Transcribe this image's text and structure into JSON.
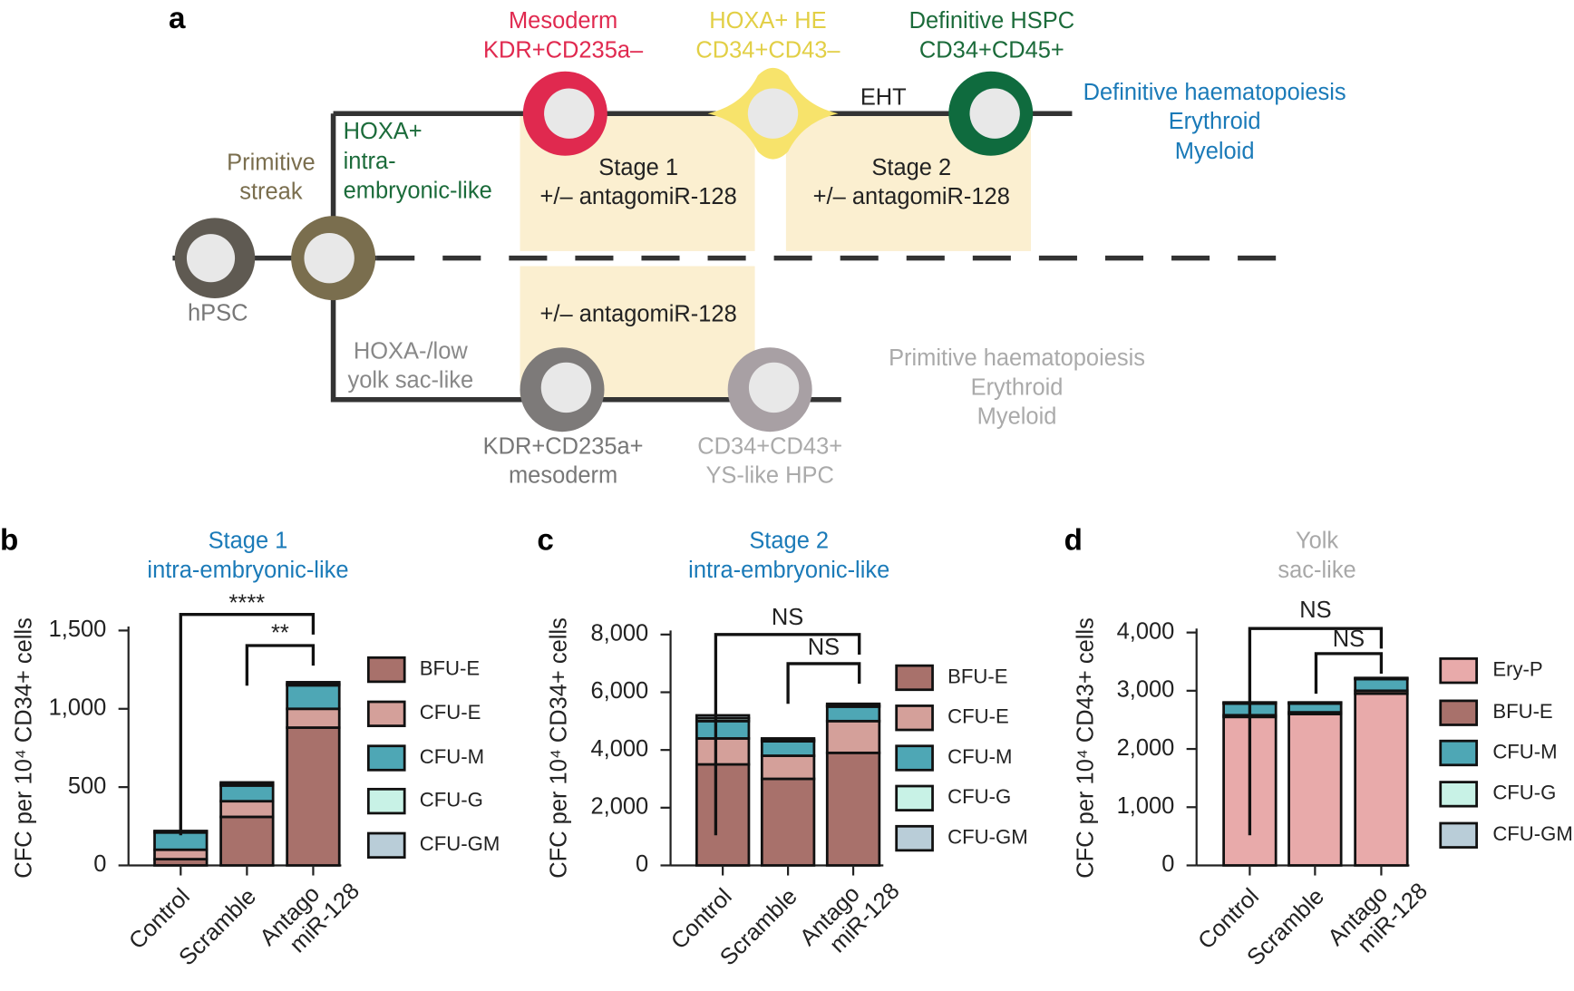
{
  "diagram": {
    "panel": "a",
    "mesoderm": [
      "Mesoderm",
      "KDR+CD235a–"
    ],
    "he": [
      "HOXA+ HE",
      "CD34+CD43–"
    ],
    "hspc": [
      "Definitive HSPC",
      "CD34+CD45+"
    ],
    "eht": "EHT",
    "definitive": [
      "Definitive haematopoiesis",
      "Erythroid",
      "Myeloid"
    ],
    "intra": [
      "HOXA+",
      "intra-",
      "embryonic-like"
    ],
    "streak": [
      "Primitive",
      "streak"
    ],
    "stage1": [
      "Stage 1",
      "+/– antagomiR-128"
    ],
    "stage2": [
      "Stage 2",
      "+/– antagomiR-128"
    ],
    "hpsc": "hPSC",
    "ys_treat": "+/– antagomiR-128",
    "yolk": [
      "HOXA-/low",
      "yolk sac-like"
    ],
    "primitive": [
      "Primitive haematopoiesis",
      "Erythroid",
      "Myeloid"
    ],
    "ys_meso": [
      "KDR+CD235a+",
      "mesoderm"
    ],
    "ys_hpc": [
      "CD34+CD43+",
      "YS-like HPC"
    ]
  },
  "chart_data": [
    {
      "type": "stacked-bar",
      "panel": "b",
      "title": [
        "Stage 1",
        "intra-embryonic-like"
      ],
      "title_color": "#1a7ab8",
      "ylabel": "CFC per 10⁴ CD34+ cells",
      "categories": [
        "Control",
        "Scramble",
        "Antago miR-128"
      ],
      "series": [
        {
          "name": "BFU-E",
          "color": "#a8716b",
          "values": [
            40,
            310,
            880
          ]
        },
        {
          "name": "CFU-E",
          "color": "#d4a09a",
          "values": [
            60,
            100,
            120
          ]
        },
        {
          "name": "CFU-M",
          "color": "#4ea7b5",
          "values": [
            110,
            100,
            150
          ]
        },
        {
          "name": "CFU-G",
          "color": "#c8f2e6",
          "values": [
            5,
            10,
            10
          ]
        },
        {
          "name": "CFU-GM",
          "color": "#b9cdd8",
          "values": [
            5,
            10,
            10
          ]
        }
      ],
      "ylim": [
        0,
        1500
      ],
      "yticks": [
        0,
        500,
        {
          "value": 1000,
          "label": "1,000"
        },
        {
          "value": 1500,
          "label": "1,500"
        }
      ],
      "annotations": [
        "****",
        "**"
      ]
    },
    {
      "type": "stacked-bar",
      "panel": "c",
      "title": [
        "Stage 2",
        "intra-embryonic-like"
      ],
      "title_color": "#1a7ab8",
      "ylabel": "CFC per 10⁴ CD34+ cells",
      "categories": [
        "Control",
        "Scramble",
        "Antago miR-128"
      ],
      "series": [
        {
          "name": "BFU-E",
          "color": "#a8716b",
          "values": [
            3500,
            3000,
            3900
          ]
        },
        {
          "name": "CFU-E",
          "color": "#d4a09a",
          "values": [
            900,
            800,
            1100
          ]
        },
        {
          "name": "CFU-M",
          "color": "#4ea7b5",
          "values": [
            600,
            500,
            500
          ]
        },
        {
          "name": "CFU-G",
          "color": "#c8f2e6",
          "values": [
            100,
            50,
            50
          ]
        },
        {
          "name": "CFU-GM",
          "color": "#b9cdd8",
          "values": [
            100,
            50,
            50
          ]
        }
      ],
      "ylim": [
        0,
        8000
      ],
      "yticks": [
        0,
        {
          "value": 2000,
          "label": "2,000"
        },
        {
          "value": 4000,
          "label": "4,000"
        },
        {
          "value": 6000,
          "label": "6,000"
        },
        {
          "value": 8000,
          "label": "8,000"
        }
      ],
      "annotations": [
        "NS",
        "NS"
      ]
    },
    {
      "type": "stacked-bar",
      "panel": "d",
      "title": [
        "Yolk",
        "sac-like"
      ],
      "title_color": "#a8a8a8",
      "ylabel": "CFC per 10⁴ CD43+ cells",
      "categories": [
        "Control",
        "Scramble",
        "Antago miR-128"
      ],
      "series": [
        {
          "name": "Ery-P",
          "color": "#e8aaaa",
          "values": [
            2550,
            2600,
            2950
          ]
        },
        {
          "name": "BFU-E",
          "color": "#a8716b",
          "values": [
            30,
            30,
            50
          ]
        },
        {
          "name": "CFU-M",
          "color": "#4ea7b5",
          "values": [
            200,
            150,
            200
          ]
        },
        {
          "name": "CFU-G",
          "color": "#c8f2e6",
          "values": [
            10,
            10,
            10
          ]
        },
        {
          "name": "CFU-GM",
          "color": "#b9cdd8",
          "values": [
            10,
            10,
            10
          ]
        }
      ],
      "ylim": [
        0,
        4000
      ],
      "yticks": [
        0,
        {
          "value": 1000,
          "label": "1,000"
        },
        {
          "value": 2000,
          "label": "2,000"
        },
        {
          "value": 3000,
          "label": "3,000"
        },
        {
          "value": 4000,
          "label": "4,000"
        }
      ],
      "annotations": [
        "NS",
        "NS"
      ]
    }
  ]
}
